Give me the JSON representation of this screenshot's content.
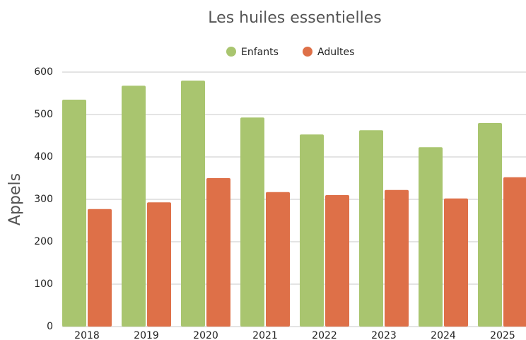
{
  "chart_data": {
    "type": "bar",
    "title": "Les huiles essentielles",
    "y_label": "Appels",
    "categories": [
      "2018",
      "2019",
      "2020",
      "2021",
      "2022",
      "2023",
      "2024",
      "2025"
    ],
    "series": [
      {
        "name": "Enfants",
        "color": "#a9c56f",
        "values": [
          535,
          568,
          580,
          493,
          453,
          463,
          423,
          480
        ]
      },
      {
        "name": "Adultes",
        "color": "#de7048",
        "values": [
          277,
          293,
          350,
          317,
          310,
          322,
          302,
          352
        ]
      }
    ],
    "ylim": [
      0,
      600
    ],
    "yticks": [
      0,
      100,
      200,
      300,
      400,
      500,
      600
    ],
    "grid": true,
    "legend": "top"
  }
}
